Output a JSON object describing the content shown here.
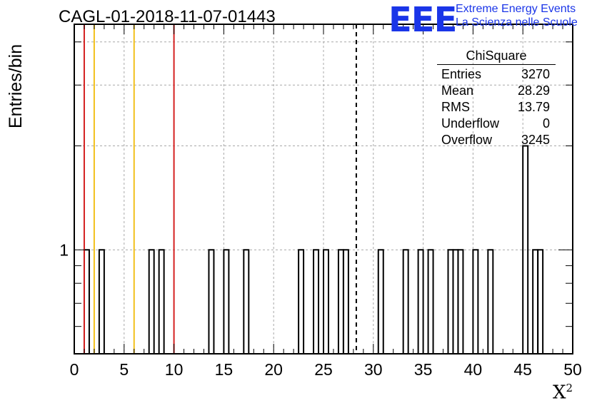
{
  "title": "CAGL-01-2018-11-07-01443",
  "logo": {
    "mark": "EEE",
    "line1": "Extreme Energy Events",
    "line2": "La Scienza nelle Scuole",
    "color": "#1a35e8"
  },
  "stats_box": {
    "name": "ChiSquare",
    "rows": [
      {
        "label": "Entries",
        "value": "3270"
      },
      {
        "label": "Mean",
        "value": "28.29"
      },
      {
        "label": "RMS",
        "value": "13.79"
      },
      {
        "label": "Underflow",
        "value": "0"
      },
      {
        "label": "Overflow",
        "value": "3245"
      }
    ]
  },
  "chart_data": {
    "type": "bar",
    "histogram": "step",
    "xlabel": "X",
    "xlabel_superscript": "2",
    "ylabel": "Entries/bin",
    "xlim": [
      0,
      50
    ],
    "ylim_log": [
      0.5,
      4.5
    ],
    "y_scale": "log",
    "x_ticks": [
      0,
      5,
      10,
      15,
      20,
      25,
      30,
      35,
      40,
      45,
      50
    ],
    "y_tick_labels": [
      {
        "value": 1,
        "label": "1"
      }
    ],
    "grid": true,
    "bin_width": 0.5,
    "bins": [
      {
        "x": 1.0,
        "count": 1
      },
      {
        "x": 2.5,
        "count": 1
      },
      {
        "x": 7.5,
        "count": 1
      },
      {
        "x": 8.5,
        "count": 1
      },
      {
        "x": 13.5,
        "count": 1
      },
      {
        "x": 15.0,
        "count": 1
      },
      {
        "x": 17.0,
        "count": 1
      },
      {
        "x": 22.5,
        "count": 1
      },
      {
        "x": 24.0,
        "count": 1
      },
      {
        "x": 25.0,
        "count": 1
      },
      {
        "x": 26.5,
        "count": 1
      },
      {
        "x": 27.0,
        "count": 1
      },
      {
        "x": 30.5,
        "count": 1
      },
      {
        "x": 33.0,
        "count": 1
      },
      {
        "x": 34.5,
        "count": 1
      },
      {
        "x": 35.5,
        "count": 1
      },
      {
        "x": 37.5,
        "count": 1
      },
      {
        "x": 38.0,
        "count": 1
      },
      {
        "x": 38.5,
        "count": 1
      },
      {
        "x": 40.0,
        "count": 1
      },
      {
        "x": 41.5,
        "count": 1
      },
      {
        "x": 45.0,
        "count": 2
      },
      {
        "x": 46.0,
        "count": 1
      },
      {
        "x": 46.5,
        "count": 1
      }
    ],
    "vertical_lines": [
      {
        "x": 1,
        "color": "#d42020",
        "style": "solid"
      },
      {
        "x": 2,
        "color": "#f2c01c",
        "style": "solid"
      },
      {
        "x": 6,
        "color": "#f2c01c",
        "style": "solid"
      },
      {
        "x": 10,
        "color": "#d42020",
        "style": "solid"
      },
      {
        "x": 28.29,
        "color": "#000000",
        "style": "dashed"
      }
    ]
  }
}
